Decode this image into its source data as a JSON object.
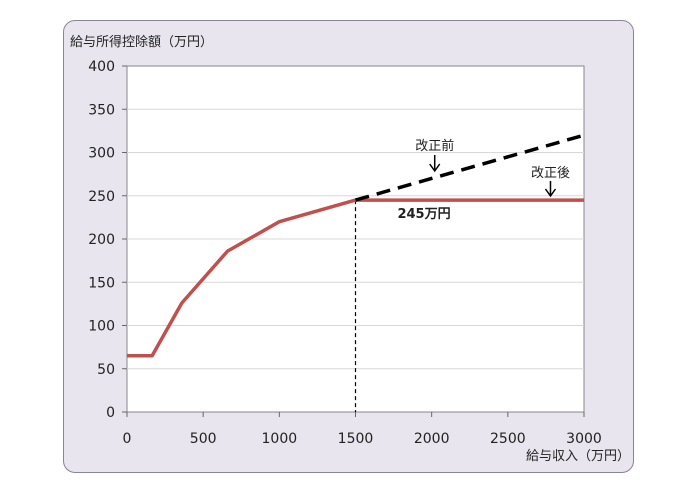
{
  "chart_data": {
    "type": "line",
    "ylabel": "給与所得控除額（万円）",
    "xlabel": "給与収入（万円）",
    "xlim": [
      0,
      3000
    ],
    "ylim": [
      0,
      400
    ],
    "xticks": [
      0,
      500,
      1000,
      1500,
      2000,
      2500,
      3000
    ],
    "yticks": [
      0,
      50,
      100,
      150,
      200,
      250,
      300,
      350,
      400
    ],
    "series": [
      {
        "name": "改正後",
        "color": "#c0504d",
        "style": "solid",
        "x": [
          0,
          165,
          360,
          660,
          1000,
          1500,
          3000
        ],
        "y": [
          65,
          65,
          126,
          186,
          220,
          245,
          245
        ]
      },
      {
        "name": "改正前",
        "color": "#000000",
        "style": "dashed",
        "x": [
          1500,
          3000
        ],
        "y": [
          245,
          320
        ]
      }
    ],
    "annotations": {
      "before_label": "改正前",
      "after_label": "改正後",
      "cap_label": "245万円"
    },
    "reference_line_x": 1500
  }
}
